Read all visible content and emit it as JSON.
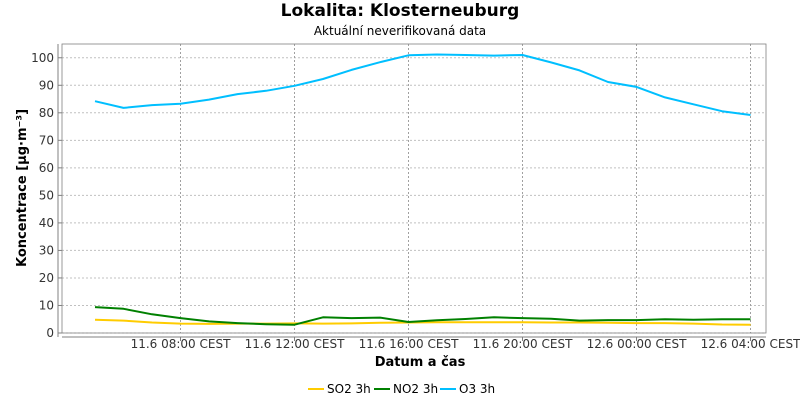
{
  "header": {
    "title": "Lokalita: Klosterneuburg",
    "subtitle": "Aktuální neverifikovaná data"
  },
  "chart_data": {
    "type": "line",
    "title": "Lokalita: Klosterneuburg",
    "subtitle": "Aktuální neverifikovaná data",
    "xlabel": "Datum a čas",
    "ylabel": "Koncentrace [µg·m⁻³]",
    "ylim": [
      0,
      105
    ],
    "yticks": [
      0,
      10,
      20,
      30,
      40,
      50,
      60,
      70,
      80,
      90,
      100
    ],
    "xticks": [
      "11.6 08:00 CEST",
      "11.6 12:00 CEST",
      "11.6 16:00 CEST",
      "11.6 20:00 CEST",
      "12.6 00:00 CEST",
      "12.6 04:00 CEST"
    ],
    "x": [
      "11.6 05:00",
      "11.6 06:00",
      "11.6 07:00",
      "11.6 08:00",
      "11.6 09:00",
      "11.6 10:00",
      "11.6 11:00",
      "11.6 12:00",
      "11.6 13:00",
      "11.6 14:00",
      "11.6 15:00",
      "11.6 16:00",
      "11.6 17:00",
      "11.6 18:00",
      "11.6 19:00",
      "11.6 20:00",
      "11.6 21:00",
      "11.6 22:00",
      "11.6 23:00",
      "12.6 00:00",
      "12.6 01:00",
      "12.6 02:00",
      "12.6 03:00",
      "12.6 04:00"
    ],
    "grid": true,
    "legend_position": "bottom",
    "series": [
      {
        "name": "SO2 3h",
        "color": "#FFCC00",
        "values": [
          4.8,
          4.5,
          3.8,
          3.4,
          3.3,
          3.4,
          3.4,
          3.5,
          3.4,
          3.5,
          3.7,
          3.8,
          3.9,
          3.9,
          3.9,
          3.9,
          3.8,
          3.8,
          3.7,
          3.6,
          3.6,
          3.4,
          3.1,
          3.0
        ]
      },
      {
        "name": "NO2 3h",
        "color": "#008000",
        "values": [
          9.4,
          8.8,
          6.8,
          5.4,
          4.2,
          3.6,
          3.2,
          3.0,
          5.7,
          5.4,
          5.6,
          4.0,
          4.6,
          5.1,
          5.7,
          5.4,
          5.2,
          4.5,
          4.7,
          4.7,
          5.0,
          4.8,
          5.0,
          5.0
        ]
      },
      {
        "name": "O3 3h",
        "color": "#00BFFF",
        "values": [
          84.2,
          81.8,
          82.8,
          83.3,
          84.8,
          86.8,
          88.0,
          89.8,
          92.3,
          95.6,
          98.4,
          100.9,
          101.2,
          101.0,
          100.8,
          101.0,
          98.3,
          95.4,
          91.2,
          89.4,
          85.6,
          83.1,
          80.6,
          79.2
        ]
      }
    ]
  }
}
